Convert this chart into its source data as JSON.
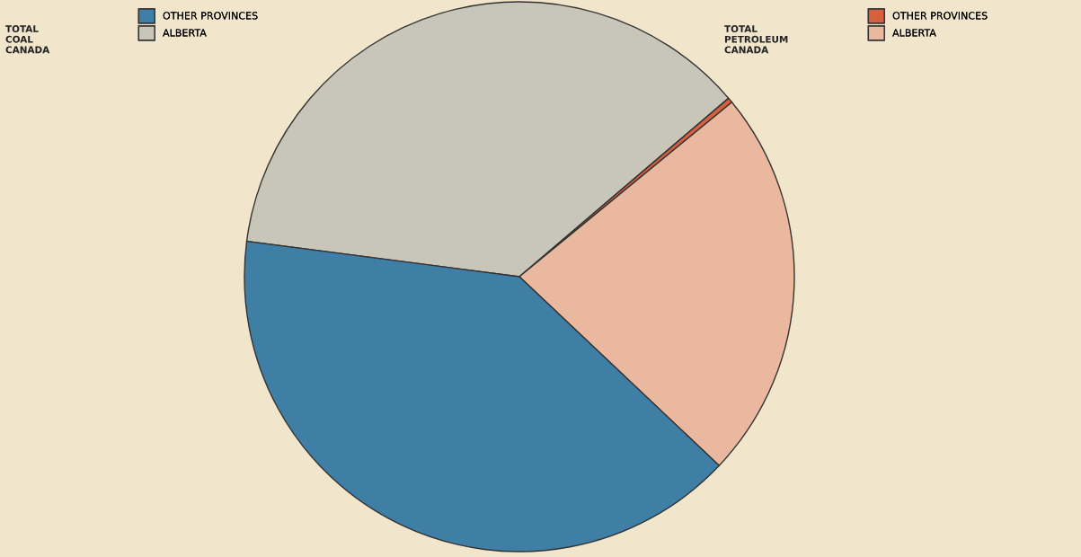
{
  "chart_data": {
    "type": "pie",
    "categories": [
      "ALBERTA",
      "OTHER PROVINCES",
      "ALBERTA",
      "OTHER PROVINCES"
    ],
    "values": [
      36.7,
      0.3,
      23.0,
      40.0
    ],
    "colors": [
      "#c8c6b8",
      "#d9603f",
      "#eab89e",
      "#3f7fa6"
    ],
    "legend": "top",
    "annotations": [
      "TOTAL COAL CANADA",
      "TOTAL PETROLEUM CANADA"
    ]
  }
}
